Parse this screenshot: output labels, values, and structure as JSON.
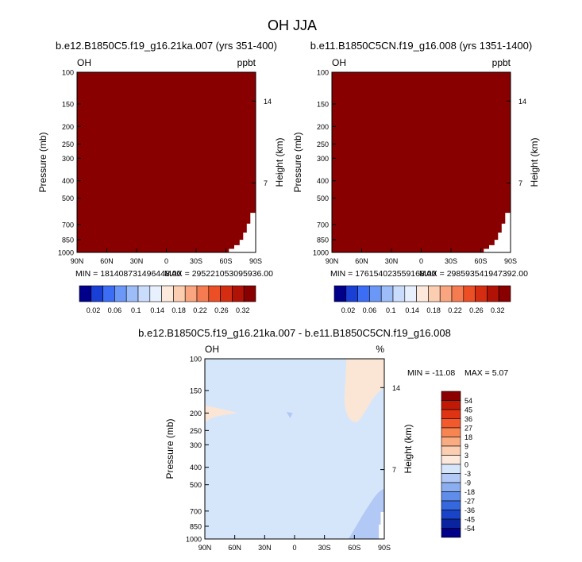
{
  "page_title": "OH JJA",
  "colors": {
    "fill_dark_red": "#880000",
    "diff_background": "#d6e6fa",
    "diff_positive": "#fbe6d6",
    "diff_negative": "#b3c9f5"
  },
  "chart_data": [
    {
      "type": "heatmap",
      "title": "b.e12.B1850C5.f19_g16.21ka.007 (yrs 351-400)",
      "corner_left": "OH",
      "corner_right": "ppbt",
      "ylabel": "Pressure (mb)",
      "ylabel_right": "Height (km)",
      "x_ticks": [
        "90N",
        "60N",
        "30N",
        "0",
        "30S",
        "60S",
        "90S"
      ],
      "y_ticks": [
        "100",
        "150",
        "200",
        "250",
        "300",
        "400",
        "500",
        "700",
        "850",
        "1000"
      ],
      "y_right_ticks": [
        "14",
        "7"
      ],
      "min_label": "MIN = 181408731496448.00",
      "max_label": "MAX = 295221053095936.00",
      "colorbar_labels": [
        "0.02",
        "0.06",
        "0.1",
        "0.14",
        "0.18",
        "0.22",
        "0.26",
        "0.32"
      ],
      "colorbar_colors": [
        "#00008b",
        "#1a3fd4",
        "#3b6ef5",
        "#6b98f7",
        "#9dbdf9",
        "#cadcfb",
        "#e8f0fd",
        "#fde9dc",
        "#fbcdb1",
        "#f9a57f",
        "#f57b50",
        "#ec4f25",
        "#d42d12",
        "#b01306",
        "#880000"
      ],
      "field_value_range": [
        181408731496448.0,
        295221053095936.0
      ]
    },
    {
      "type": "heatmap",
      "title": "b.e11.B1850C5CN.f19_g16.008 (yrs 1351-1400)",
      "corner_left": "OH",
      "corner_right": "ppbt",
      "ylabel": "Pressure (mb)",
      "ylabel_right": "Height (km)",
      "x_ticks": [
        "90N",
        "60N",
        "30N",
        "0",
        "30S",
        "60S",
        "90S"
      ],
      "y_ticks": [
        "100",
        "150",
        "200",
        "250",
        "300",
        "400",
        "500",
        "700",
        "850",
        "1000"
      ],
      "y_right_ticks": [
        "14",
        "7"
      ],
      "min_label": "MIN = 176154023559168.00",
      "max_label": "MAX = 298593541947392.00",
      "colorbar_labels": [
        "0.02",
        "0.06",
        "0.1",
        "0.14",
        "0.18",
        "0.22",
        "0.26",
        "0.32"
      ],
      "colorbar_colors": [
        "#00008b",
        "#1a3fd4",
        "#3b6ef5",
        "#6b98f7",
        "#9dbdf9",
        "#cadcfb",
        "#e8f0fd",
        "#fde9dc",
        "#fbcdb1",
        "#f9a57f",
        "#f57b50",
        "#ec4f25",
        "#d42d12",
        "#b01306",
        "#880000"
      ],
      "field_value_range": [
        176154023559168.0,
        298593541947392.0
      ]
    },
    {
      "type": "heatmap",
      "title": "b.e12.B1850C5.f19_g16.21ka.007 - b.e11.B1850C5CN.f19_g16.008",
      "corner_left": "OH",
      "corner_right": "%",
      "ylabel": "Pressure (mb)",
      "ylabel_right": "Height (km)",
      "x_ticks": [
        "90N",
        "60N",
        "30N",
        "0",
        "30S",
        "60S",
        "90S"
      ],
      "y_ticks": [
        "100",
        "150",
        "200",
        "250",
        "300",
        "400",
        "500",
        "700",
        "850",
        "1000"
      ],
      "y_right_ticks": [
        "14",
        "7"
      ],
      "min_label": "MIN = -11.08",
      "max_label": "MAX =   5.07",
      "colorbar_labels": [
        "54",
        "45",
        "36",
        "27",
        "18",
        "9",
        "3",
        "0",
        "-3",
        "-9",
        "-18",
        "-27",
        "-36",
        "-45",
        "-54"
      ],
      "colorbar_colors": [
        "#8b0000",
        "#c01a06",
        "#de3414",
        "#f25a2e",
        "#f78552",
        "#f9ab82",
        "#fbcdb1",
        "#fde9dc",
        "#d6e6fa",
        "#b3c9f5",
        "#8aaef0",
        "#5f8de9",
        "#3568de",
        "#1a44c8",
        "#0a24a0",
        "#00008b"
      ],
      "field_value_range": [
        -11.08,
        5.07
      ]
    }
  ]
}
